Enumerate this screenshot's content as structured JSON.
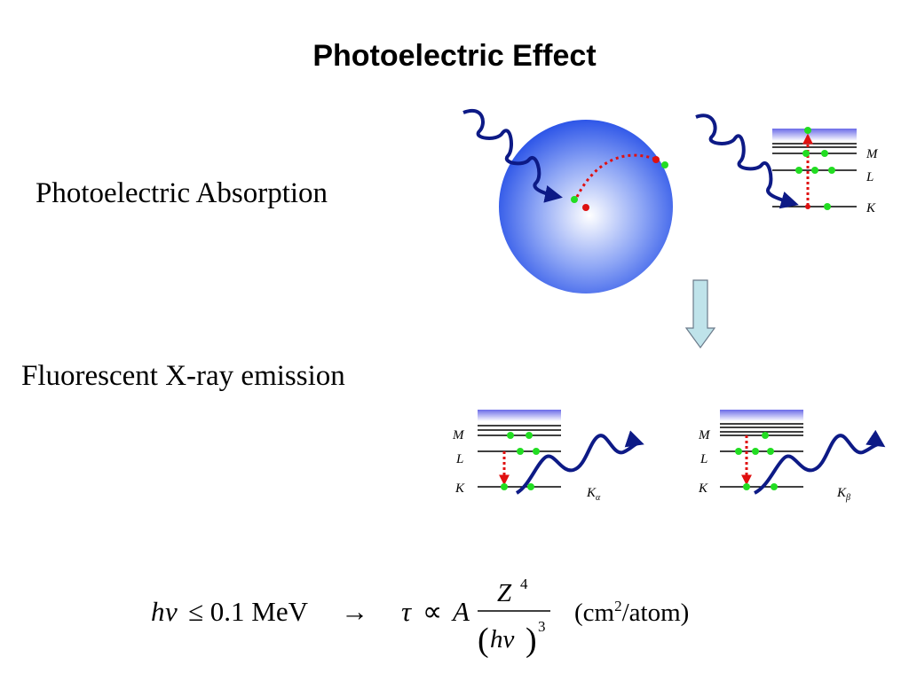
{
  "title": "Photoelectric Effect",
  "labels": {
    "absorption": "Photoelectric Absorption",
    "fluorescence": "Fluorescent X-ray emission"
  },
  "shells": {
    "M": "M",
    "L": "L",
    "K": "K"
  },
  "emission_lines": {
    "k_alpha": {
      "base": "K",
      "sub": "α"
    },
    "k_beta": {
      "base": "K",
      "sub": "β"
    }
  },
  "equation": {
    "lhs_h": "h",
    "lhs_nu": "ν",
    "relation": "≤ 0.1 MeV",
    "arrow": "→",
    "tau": "τ",
    "propto": "∝",
    "coef": "A",
    "num_base": "Z",
    "num_exp": "4",
    "den_base": "hν",
    "den_exp": "3",
    "paren_open": "(",
    "paren_close": ")",
    "units_open": "(cm",
    "units_exp": "2",
    "units_close": "/atom)"
  },
  "colors": {
    "photon": "#0d1a86",
    "electron_free": "#22dd22",
    "electron_hole": "#dd1111",
    "transition": "#e01010",
    "atom": "#3355ee",
    "process_arrow": "#bfe3ea"
  }
}
